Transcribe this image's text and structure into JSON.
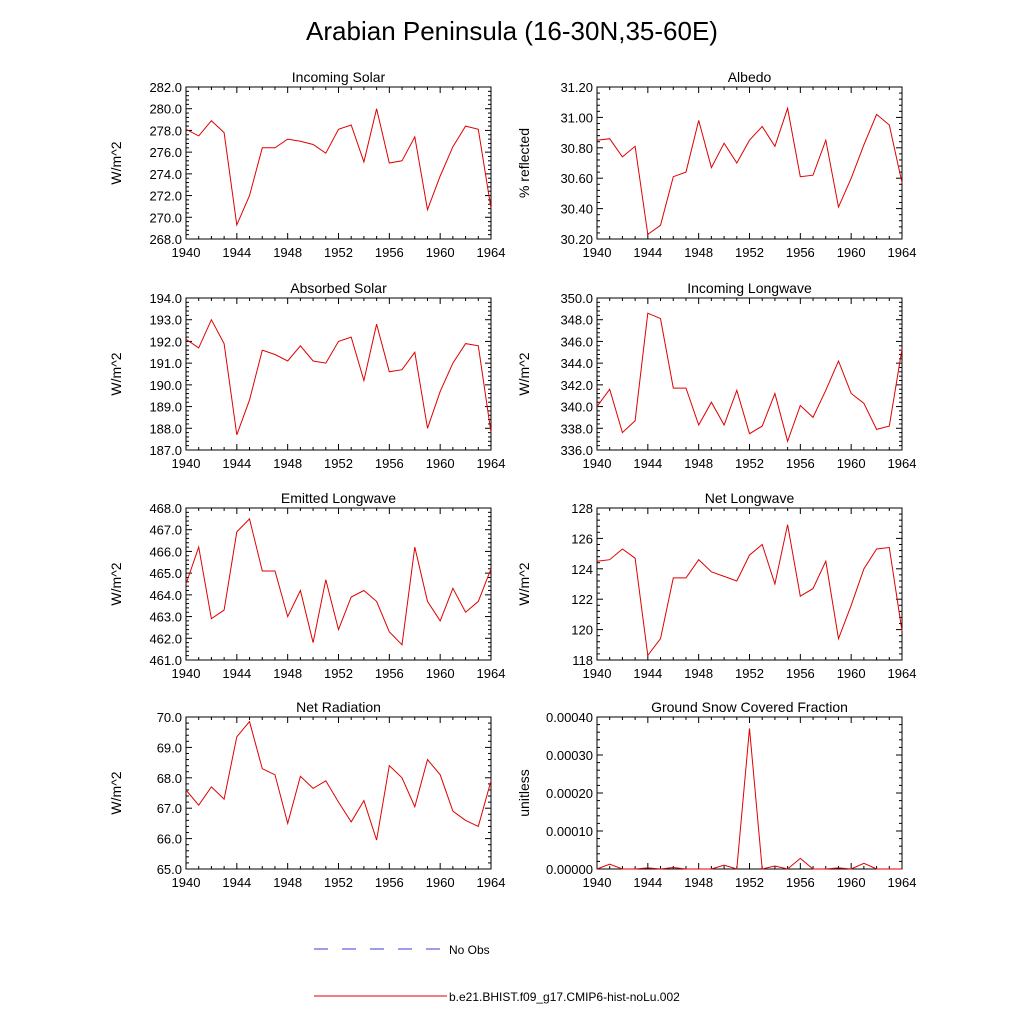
{
  "title": "Arabian Peninsula (16-30N,35-60E)",
  "legend": [
    {
      "label": "No Obs",
      "color": "#3b3bd6",
      "style": "dashed"
    },
    {
      "label": "b.e21.BHIST.f09_g17.CMIP6-hist-noLu.002",
      "color": "#e00000",
      "style": "solid"
    }
  ],
  "chart_data": [
    {
      "type": "line",
      "title": "Incoming Solar",
      "ylabel": "W/m^2",
      "xlim": [
        1940,
        1964
      ],
      "xticks": [
        1940,
        1944,
        1948,
        1952,
        1956,
        1960,
        1964
      ],
      "ylim": [
        268,
        282
      ],
      "yticks": [
        "268.0",
        "270.0",
        "272.0",
        "274.0",
        "276.0",
        "278.0",
        "280.0",
        "282.0"
      ],
      "series": [
        {
          "color": "#e00000",
          "x": [
            1940,
            1941,
            1942,
            1943,
            1944,
            1945,
            1946,
            1947,
            1948,
            1949,
            1950,
            1951,
            1952,
            1953,
            1954,
            1955,
            1956,
            1957,
            1958,
            1959,
            1960,
            1961,
            1962,
            1963,
            1964
          ],
          "y": [
            278.1,
            277.5,
            278.9,
            277.8,
            269.3,
            272.0,
            276.4,
            276.4,
            277.2,
            277.0,
            276.7,
            275.9,
            278.1,
            278.5,
            275.1,
            280.0,
            275.0,
            275.2,
            277.4,
            270.7,
            273.8,
            276.5,
            278.4,
            278.1,
            270.8
          ]
        }
      ]
    },
    {
      "type": "line",
      "title": "Albedo",
      "ylabel": "% reflected",
      "xlim": [
        1940,
        1964
      ],
      "xticks": [
        1940,
        1944,
        1948,
        1952,
        1956,
        1960,
        1964
      ],
      "ylim": [
        30.2,
        31.2
      ],
      "yticks": [
        "30.20",
        "30.40",
        "30.60",
        "30.80",
        "31.00",
        "31.20"
      ],
      "series": [
        {
          "color": "#e00000",
          "x": [
            1940,
            1941,
            1942,
            1943,
            1944,
            1945,
            1946,
            1947,
            1948,
            1949,
            1950,
            1951,
            1952,
            1953,
            1954,
            1955,
            1956,
            1957,
            1958,
            1959,
            1960,
            1961,
            1962,
            1963,
            1964
          ],
          "y": [
            30.85,
            30.86,
            30.74,
            30.81,
            30.23,
            30.29,
            30.61,
            30.64,
            30.98,
            30.67,
            30.83,
            30.7,
            30.85,
            30.94,
            30.81,
            31.06,
            30.61,
            30.62,
            30.85,
            30.41,
            30.6,
            30.82,
            31.02,
            30.95,
            30.57
          ]
        }
      ]
    },
    {
      "type": "line",
      "title": "Absorbed Solar",
      "ylabel": "W/m^2",
      "xlim": [
        1940,
        1964
      ],
      "xticks": [
        1940,
        1944,
        1948,
        1952,
        1956,
        1960,
        1964
      ],
      "ylim": [
        187,
        194
      ],
      "yticks": [
        "187.0",
        "188.0",
        "189.0",
        "190.0",
        "191.0",
        "192.0",
        "193.0",
        "194.0"
      ],
      "series": [
        {
          "color": "#e00000",
          "x": [
            1940,
            1941,
            1942,
            1943,
            1944,
            1945,
            1946,
            1947,
            1948,
            1949,
            1950,
            1951,
            1952,
            1953,
            1954,
            1955,
            1956,
            1957,
            1958,
            1959,
            1960,
            1961,
            1962,
            1963,
            1964
          ],
          "y": [
            192.1,
            191.7,
            193.0,
            191.9,
            187.7,
            189.3,
            191.6,
            191.4,
            191.1,
            191.8,
            191.1,
            191.0,
            192.0,
            192.2,
            190.2,
            192.8,
            190.6,
            190.7,
            191.5,
            188.0,
            189.7,
            191.0,
            191.9,
            191.8,
            187.8
          ]
        }
      ]
    },
    {
      "type": "line",
      "title": "Incoming Longwave",
      "ylabel": "W/m^2",
      "xlim": [
        1940,
        1964
      ],
      "xticks": [
        1940,
        1944,
        1948,
        1952,
        1956,
        1960,
        1964
      ],
      "ylim": [
        336,
        350
      ],
      "yticks": [
        "336.0",
        "338.0",
        "340.0",
        "342.0",
        "344.0",
        "346.0",
        "348.0",
        "350.0"
      ],
      "series": [
        {
          "color": "#e00000",
          "x": [
            1940,
            1941,
            1942,
            1943,
            1944,
            1945,
            1946,
            1947,
            1948,
            1949,
            1950,
            1951,
            1952,
            1953,
            1954,
            1955,
            1956,
            1957,
            1958,
            1959,
            1960,
            1961,
            1962,
            1963,
            1964
          ],
          "y": [
            340.0,
            341.6,
            337.6,
            338.7,
            348.6,
            348.1,
            341.7,
            341.7,
            338.3,
            340.4,
            338.3,
            341.5,
            337.5,
            338.2,
            341.2,
            336.8,
            340.1,
            339.0,
            341.5,
            344.2,
            341.2,
            340.3,
            337.9,
            338.2,
            345.3
          ]
        }
      ]
    },
    {
      "type": "line",
      "title": "Emitted Longwave",
      "ylabel": "W/m^2",
      "xlim": [
        1940,
        1964
      ],
      "xticks": [
        1940,
        1944,
        1948,
        1952,
        1956,
        1960,
        1964
      ],
      "ylim": [
        461,
        468
      ],
      "yticks": [
        "461.0",
        "462.0",
        "463.0",
        "464.0",
        "465.0",
        "466.0",
        "467.0",
        "468.0"
      ],
      "series": [
        {
          "color": "#e00000",
          "x": [
            1940,
            1941,
            1942,
            1943,
            1944,
            1945,
            1946,
            1947,
            1948,
            1949,
            1950,
            1951,
            1952,
            1953,
            1954,
            1955,
            1956,
            1957,
            1958,
            1959,
            1960,
            1961,
            1962,
            1963,
            1964
          ],
          "y": [
            464.5,
            466.2,
            462.9,
            463.3,
            466.9,
            467.5,
            465.1,
            465.1,
            463.0,
            464.2,
            461.8,
            464.7,
            462.4,
            463.9,
            464.2,
            463.7,
            462.3,
            461.7,
            466.2,
            463.7,
            462.8,
            464.3,
            463.2,
            463.7,
            465.2
          ]
        }
      ]
    },
    {
      "type": "line",
      "title": "Net Longwave",
      "ylabel": "W/m^2",
      "xlim": [
        1940,
        1964
      ],
      "xticks": [
        1940,
        1944,
        1948,
        1952,
        1956,
        1960,
        1964
      ],
      "ylim": [
        118,
        128
      ],
      "yticks": [
        "118",
        "120",
        "122",
        "124",
        "126",
        "128"
      ],
      "series": [
        {
          "color": "#e00000",
          "x": [
            1940,
            1941,
            1942,
            1943,
            1944,
            1945,
            1946,
            1947,
            1948,
            1949,
            1950,
            1951,
            1952,
            1953,
            1954,
            1955,
            1956,
            1957,
            1958,
            1959,
            1960,
            1961,
            1962,
            1963,
            1964
          ],
          "y": [
            124.5,
            124.6,
            125.3,
            124.7,
            118.3,
            119.4,
            123.4,
            123.4,
            124.6,
            123.8,
            123.5,
            123.2,
            124.9,
            125.6,
            123.0,
            126.9,
            122.2,
            122.7,
            124.5,
            119.4,
            121.6,
            124.0,
            125.3,
            125.4,
            119.9
          ]
        }
      ]
    },
    {
      "type": "line",
      "title": "Net Radiation",
      "ylabel": "W/m^2",
      "xlim": [
        1940,
        1964
      ],
      "xticks": [
        1940,
        1944,
        1948,
        1952,
        1956,
        1960,
        1964
      ],
      "ylim": [
        65,
        70
      ],
      "yticks": [
        "65.0",
        "66.0",
        "67.0",
        "68.0",
        "69.0",
        "70.0"
      ],
      "series": [
        {
          "color": "#e00000",
          "x": [
            1940,
            1941,
            1942,
            1943,
            1944,
            1945,
            1946,
            1947,
            1948,
            1949,
            1950,
            1951,
            1952,
            1953,
            1954,
            1955,
            1956,
            1957,
            1958,
            1959,
            1960,
            1961,
            1962,
            1963,
            1964
          ],
          "y": [
            67.6,
            67.1,
            67.7,
            67.3,
            69.35,
            69.85,
            68.3,
            68.1,
            66.5,
            68.05,
            67.65,
            67.9,
            67.2,
            66.55,
            67.25,
            65.95,
            68.4,
            68.0,
            67.05,
            68.6,
            68.1,
            66.9,
            66.6,
            66.4,
            67.9
          ]
        }
      ]
    },
    {
      "type": "line",
      "title": "Ground Snow Covered Fraction",
      "ylabel": "unitless",
      "xlim": [
        1940,
        1964
      ],
      "xticks": [
        1940,
        1944,
        1948,
        1952,
        1956,
        1960,
        1964
      ],
      "ylim": [
        0,
        0.0004
      ],
      "yticks": [
        "0.00000",
        "0.00010",
        "0.00020",
        "0.00030",
        "0.00040"
      ],
      "series": [
        {
          "color": "#e00000",
          "x": [
            1940,
            1941,
            1942,
            1943,
            1944,
            1945,
            1946,
            1947,
            1948,
            1949,
            1950,
            1951,
            1952,
            1953,
            1954,
            1955,
            1956,
            1957,
            1958,
            1959,
            1960,
            1961,
            1962,
            1963,
            1964
          ],
          "y": [
            0.0,
            1.3e-05,
            0.0,
            0.0,
            3e-06,
            0.0,
            4e-06,
            0.0,
            0.0,
            0.0,
            1e-05,
            0.0,
            0.00037,
            0.0,
            8e-06,
            0.0,
            2.8e-05,
            0.0,
            0.0,
            3e-06,
            0.0,
            1.5e-05,
            0.0,
            0.0,
            0.0
          ]
        }
      ]
    }
  ]
}
